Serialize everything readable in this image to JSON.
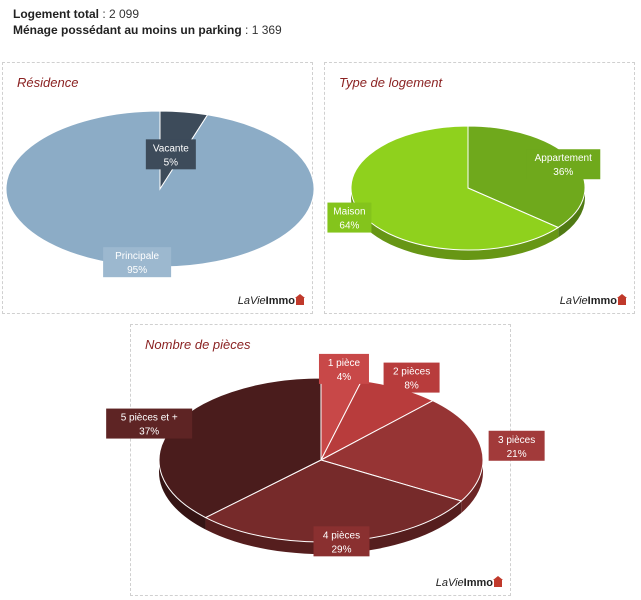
{
  "summary": {
    "line1_label": "Logement total",
    "line1_value": " : 2 099",
    "line2_label": "Ménage possédant au moins un parking",
    "line2_value": " : 1 369"
  },
  "brand": {
    "part1": "LaVie",
    "part2": "Immo"
  },
  "chart_data": [
    {
      "type": "pie",
      "title": "Résidence",
      "slices": [
        {
          "label": "Vacante",
          "value": 5,
          "percent_label": "5%",
          "color": "#3d4b5a",
          "label_bg": "#3d4b5a"
        },
        {
          "label": "Principale",
          "value": 95,
          "percent_label": "95%",
          "color": "#8cacc6",
          "label_bg": "#9cb8cf"
        }
      ]
    },
    {
      "type": "pie",
      "title": "Type de logement",
      "slices": [
        {
          "label": "Appartement",
          "value": 36,
          "percent_label": "36%",
          "color": "#6fa91c",
          "label_bg": "#6fa91c"
        },
        {
          "label": "Maison",
          "value": 64,
          "percent_label": "64%",
          "color": "#8fd11d",
          "label_bg": "#84c41c"
        }
      ]
    },
    {
      "type": "pie",
      "title": "Nombre de pièces",
      "slices": [
        {
          "label": "1 pièce",
          "value": 4,
          "percent_label": "4%",
          "color": "#c84848",
          "label_bg": "#c84848"
        },
        {
          "label": "2 pièces",
          "value": 8,
          "percent_label": "8%",
          "color": "#b83c3c",
          "label_bg": "#b83c3c"
        },
        {
          "label": "3 pièces",
          "value": 21,
          "percent_label": "21%",
          "color": "#963434",
          "label_bg": "#a23a3a"
        },
        {
          "label": "4 pièces",
          "value": 29,
          "percent_label": "29%",
          "color": "#762a2a",
          "label_bg": "#8a3030"
        },
        {
          "label": "5 pièces et +",
          "value": 37,
          "percent_label": "37%",
          "color": "#4a1c1c",
          "label_bg": "#5e2424"
        }
      ]
    }
  ]
}
